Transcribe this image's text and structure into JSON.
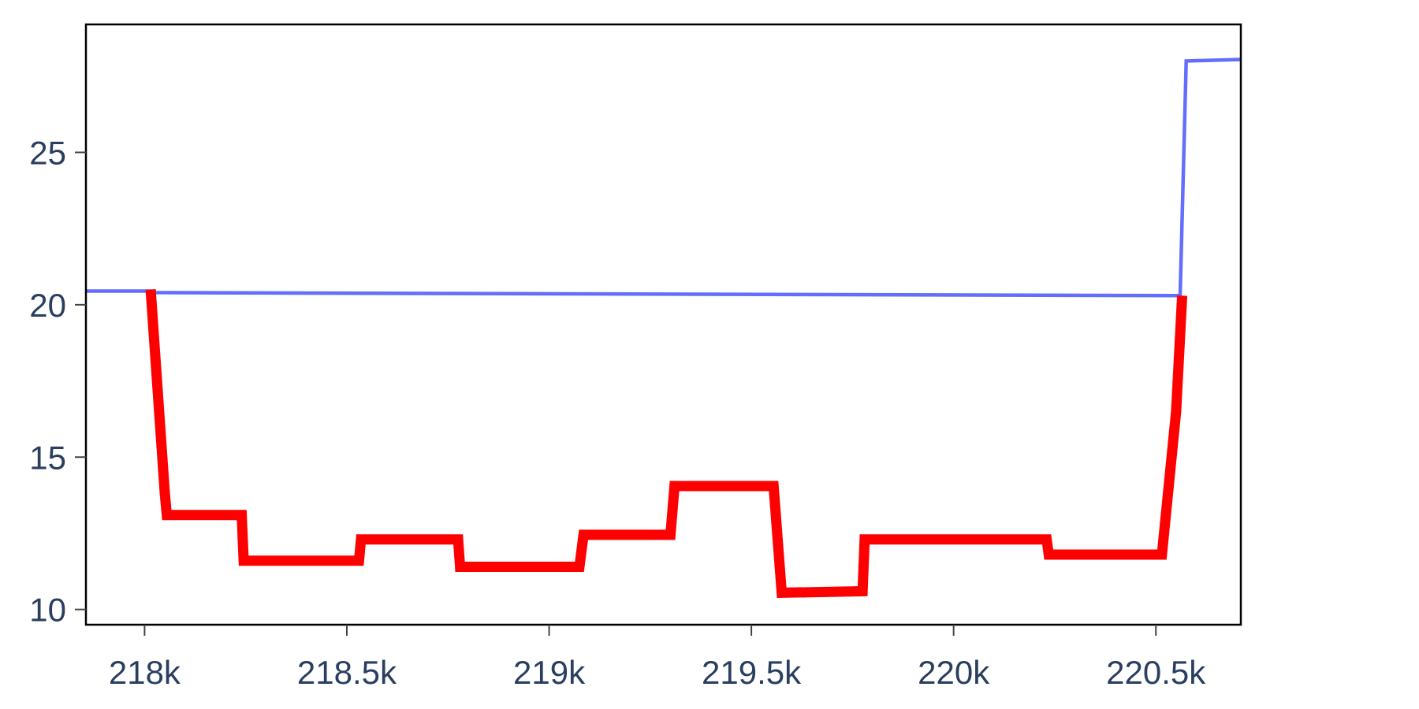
{
  "chart_data": {
    "type": "line",
    "title": "",
    "xlabel": "",
    "ylabel": "",
    "xlim": [
      217855,
      220710
    ],
    "ylim": [
      9.5,
      29.2
    ],
    "x_ticks": [
      218000,
      218500,
      219000,
      219500,
      220000,
      220500
    ],
    "x_tick_labels": [
      "218k",
      "218.5k",
      "219k",
      "219.5k",
      "220k",
      "220.5k"
    ],
    "y_ticks": [
      10,
      15,
      20,
      25
    ],
    "y_tick_labels": [
      "10",
      "15",
      "20",
      "25"
    ],
    "grid": false,
    "legend": "none",
    "series": [
      {
        "color": "#636efa",
        "points": [
          [
            217855,
            20.45
          ],
          [
            218015,
            20.45
          ],
          [
            218020,
            20.4
          ],
          [
            220560,
            20.3
          ],
          [
            220575,
            28.0
          ],
          [
            220710,
            28.05
          ]
        ]
      },
      {
        "color": "#ff0000",
        "points": [
          [
            218015,
            20.5
          ],
          [
            218050,
            13.8
          ],
          [
            218055,
            13.1
          ],
          [
            218240,
            13.1
          ],
          [
            218245,
            11.6
          ],
          [
            218530,
            11.6
          ],
          [
            218535,
            12.3
          ],
          [
            218775,
            12.3
          ],
          [
            218780,
            11.4
          ],
          [
            219075,
            11.4
          ],
          [
            219085,
            12.45
          ],
          [
            219300,
            12.45
          ],
          [
            219310,
            14.05
          ],
          [
            219555,
            14.05
          ],
          [
            219575,
            10.55
          ],
          [
            219775,
            10.6
          ],
          [
            219780,
            12.3
          ],
          [
            220230,
            12.3
          ],
          [
            220235,
            11.8
          ],
          [
            220515,
            11.8
          ],
          [
            220550,
            16.5
          ],
          [
            220565,
            20.3
          ]
        ]
      }
    ]
  }
}
